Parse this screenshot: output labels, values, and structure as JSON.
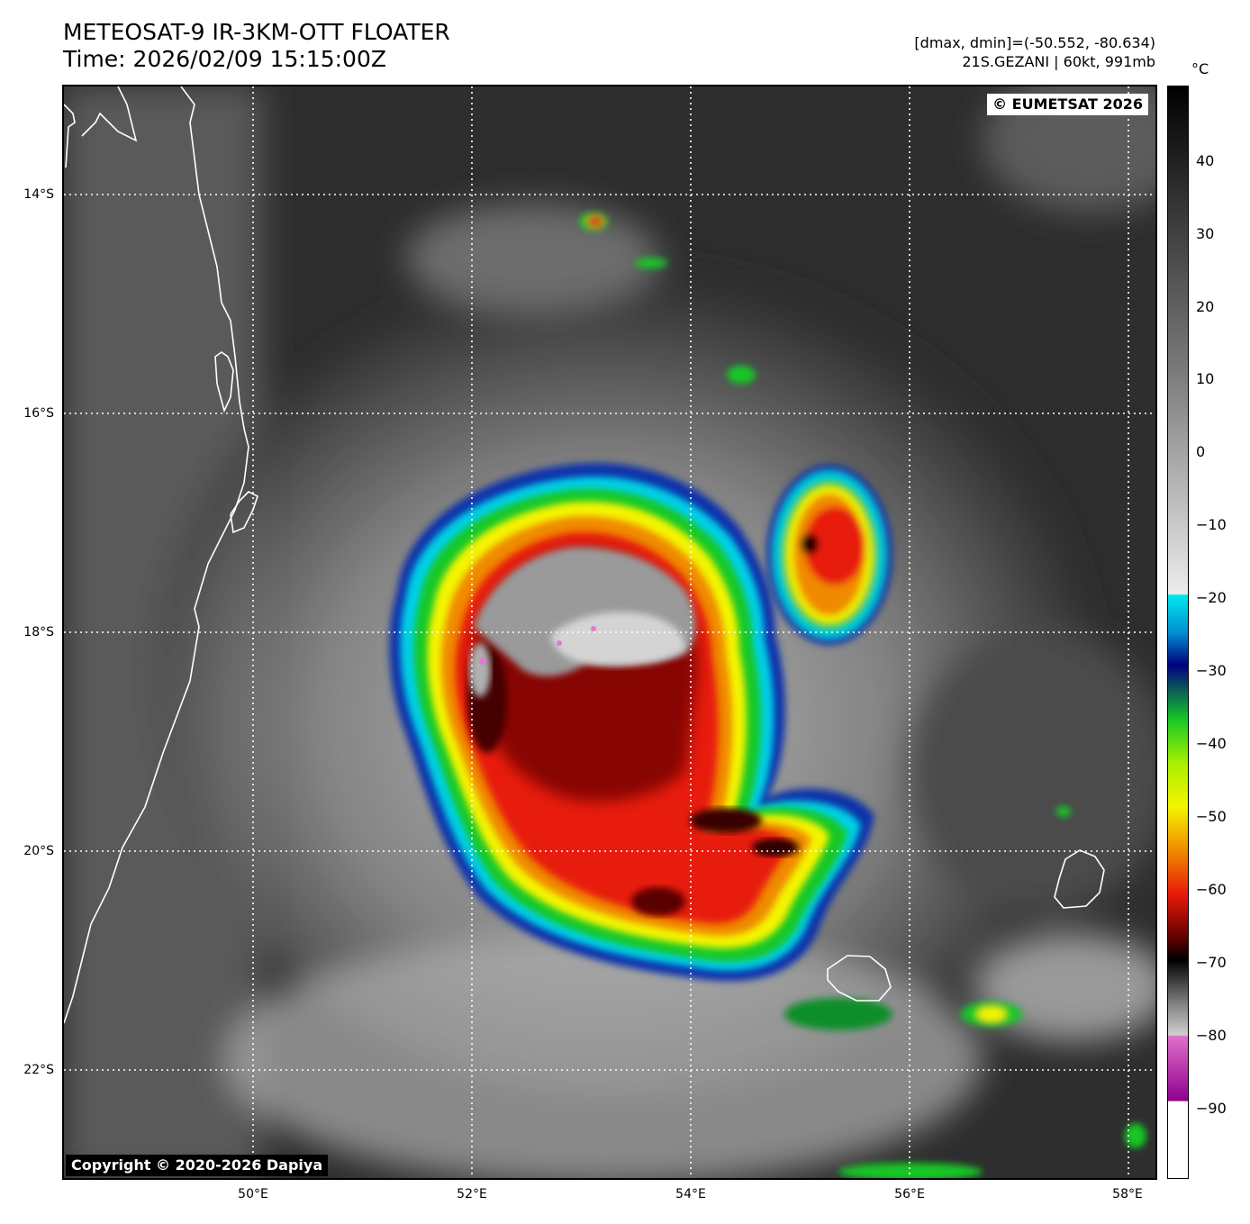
{
  "header": {
    "title": "METEOSAT-9 IR-3KM-OTT FLOATER",
    "time": "Time: 2026/02/09 15:15:00Z",
    "range": "[dmax, dmin]=(-50.552, -80.634)",
    "storm": "21S.GEZANI | 60kt, 991mb"
  },
  "map": {
    "credit_top": "© EUMETSAT 2026",
    "credit_bottom": "Copyright © 2020-2026 Dapiya",
    "lat_labels": [
      "14°S",
      "16°S",
      "18°S",
      "20°S",
      "22°S"
    ],
    "lon_labels": [
      "50°E",
      "52°E",
      "54°E",
      "56°E",
      "58°E"
    ],
    "coast_color": "#ffffff",
    "grid_color": "#ffffff"
  },
  "colorbar": {
    "unit": "°C",
    "ticks": [
      "40",
      "30",
      "20",
      "10",
      "0",
      "−10",
      "−20",
      "−30",
      "−40",
      "−50",
      "−60",
      "−70",
      "−80",
      "−90"
    ]
  }
}
